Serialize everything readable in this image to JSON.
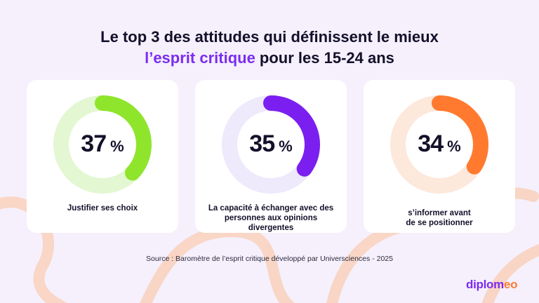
{
  "title": {
    "line1": "Le top 3 des attitudes qui définissent le mieux",
    "line2_accent": "l’esprit critique",
    "line2_rest": " pour les 15-24 ans"
  },
  "unit": "%",
  "cards": [
    {
      "value": "37",
      "label_lines": [
        "Justifier ses choix"
      ],
      "color": "#8ee52b",
      "track": "#e3f7d2"
    },
    {
      "value": "35",
      "label_lines": [
        "La capacité à échanger avec des",
        "personnes aux opinions",
        "divergentes"
      ],
      "color": "#7b1ff0",
      "track": "#eee9fb"
    },
    {
      "value": "34",
      "label_lines": [
        "s’informer avant",
        "de se positionner"
      ],
      "color": "#ff7a2f",
      "track": "#fde8dc"
    }
  ],
  "source": "Source : Baromètre de l’esprit critique développé par Universciences - 2025",
  "logo": {
    "main": "diplom",
    "highlight": "eo"
  },
  "chart_data": {
    "type": "pie",
    "unit": "%",
    "categories": [
      "Justifier ses choix",
      "La capacité à échanger avec des personnes aux opinions divergentes",
      "s’informer avant de se positionner"
    ],
    "values": [
      37,
      35,
      34
    ],
    "title": "Le top 3 des attitudes qui définissent le mieux l’esprit critique pour les 15-24 ans"
  }
}
